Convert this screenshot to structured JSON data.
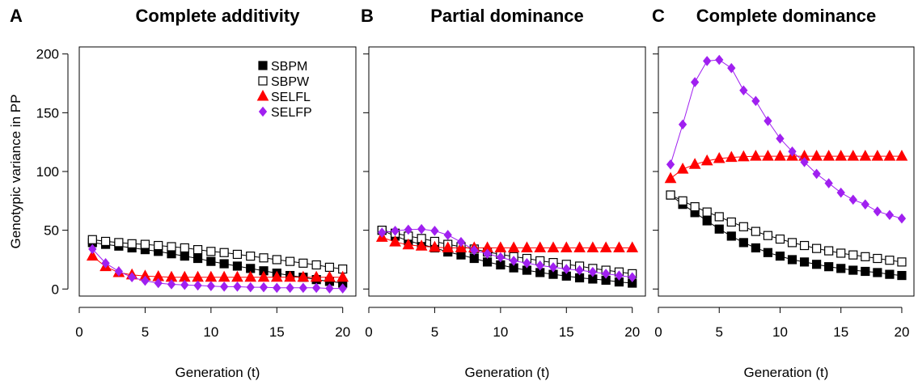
{
  "y_axis_title": "Genotypic variance in PP",
  "x_axis_title": "Generation (t)",
  "legend": [
    {
      "name": "SBPM",
      "marker": "filled-square",
      "color": "#000000"
    },
    {
      "name": "SBPW",
      "marker": "open-square",
      "color": "#000000"
    },
    {
      "name": "SELFL",
      "marker": "triangle",
      "color": "#ff0000"
    },
    {
      "name": "SELFP",
      "marker": "diamond",
      "color": "#a020f0"
    }
  ],
  "chart_data": [
    {
      "type": "line",
      "panel_letter": "A",
      "title": "Complete additivity",
      "xlabel": "Generation (t)",
      "ylabel": "Genotypic variance in PP",
      "xlim": [
        0,
        21
      ],
      "ylim": [
        -6,
        206
      ],
      "xticks": [
        0,
        5,
        10,
        15,
        20
      ],
      "yticks": [
        0,
        50,
        100,
        150,
        200
      ],
      "legend_position": "top-right",
      "x": [
        1,
        2,
        3,
        4,
        5,
        6,
        7,
        8,
        9,
        10,
        11,
        12,
        13,
        14,
        15,
        16,
        17,
        18,
        19,
        20
      ],
      "series": [
        {
          "name": "SBPM",
          "values": [
            39.5,
            38,
            36.5,
            35,
            33.5,
            32,
            30,
            28,
            26,
            23.5,
            21.5,
            19.5,
            17.5,
            15.5,
            13.5,
            11.5,
            10,
            8,
            6.5,
            5
          ]
        },
        {
          "name": "SBPW",
          "values": [
            42,
            40.5,
            39.5,
            38.5,
            38,
            37,
            36,
            35,
            33.5,
            32,
            31,
            29.5,
            28,
            26.5,
            25,
            23.5,
            22,
            20.5,
            18.5,
            17
          ]
        },
        {
          "name": "SELFL",
          "values": [
            28,
            19,
            14,
            12,
            11,
            10.5,
            10,
            10,
            10,
            10,
            10,
            10,
            10,
            10,
            10,
            10,
            10,
            10,
            10,
            10
          ]
        },
        {
          "name": "SELFP",
          "values": [
            34,
            22,
            15,
            10,
            7,
            5,
            4,
            3.5,
            3,
            2.5,
            2,
            2,
            1.5,
            1.5,
            1,
            1,
            1,
            1,
            0.5,
            0.5
          ]
        }
      ]
    },
    {
      "type": "line",
      "panel_letter": "B",
      "title": "Partial dominance",
      "xlabel": "Generation (t)",
      "ylabel": "",
      "xlim": [
        0,
        21
      ],
      "ylim": [
        -6,
        206
      ],
      "xticks": [
        0,
        5,
        10,
        15,
        20
      ],
      "yticks": [
        0,
        50,
        100,
        150,
        200
      ],
      "x": [
        1,
        2,
        3,
        4,
        5,
        6,
        7,
        8,
        9,
        10,
        11,
        12,
        13,
        14,
        15,
        16,
        17,
        18,
        19,
        20
      ],
      "series": [
        {
          "name": "SBPM",
          "values": [
            50,
            45,
            41,
            38,
            35,
            31.5,
            29,
            26,
            23,
            20.5,
            18,
            16,
            14,
            12.5,
            11,
            9.5,
            8.5,
            7.5,
            6,
            5
          ]
        },
        {
          "name": "SBPW",
          "values": [
            50,
            47.5,
            45,
            43,
            40.5,
            38,
            36,
            34,
            31.5,
            29.5,
            27.5,
            26,
            24,
            22.5,
            21,
            19.5,
            17.5,
            16,
            14.5,
            13
          ]
        },
        {
          "name": "SELFL",
          "values": [
            44,
            40,
            37.5,
            36.5,
            35.5,
            35,
            35,
            35,
            35,
            35,
            35,
            35,
            35,
            35,
            35,
            35,
            35,
            35,
            35,
            35
          ]
        },
        {
          "name": "SELFP",
          "values": [
            48,
            49.5,
            50.5,
            51,
            49.5,
            46,
            40,
            33,
            30,
            27,
            24,
            22,
            20,
            18.5,
            17,
            16,
            14.5,
            13,
            11.5,
            10
          ]
        }
      ]
    },
    {
      "type": "line",
      "panel_letter": "C",
      "title": "Complete dominance",
      "xlabel": "Generation (t)",
      "ylabel": "",
      "xlim": [
        0,
        21
      ],
      "ylim": [
        -6,
        206
      ],
      "xticks": [
        0,
        5,
        10,
        15,
        20
      ],
      "yticks": [
        0,
        50,
        100,
        150,
        200
      ],
      "x": [
        1,
        2,
        3,
        4,
        5,
        6,
        7,
        8,
        9,
        10,
        11,
        12,
        13,
        14,
        15,
        16,
        17,
        18,
        19,
        20
      ],
      "series": [
        {
          "name": "SBPM",
          "values": [
            80,
            72,
            65,
            58,
            51,
            45,
            39.5,
            35,
            31,
            28,
            25,
            23,
            21,
            19,
            17.5,
            16,
            15,
            14,
            12.5,
            11.5
          ]
        },
        {
          "name": "SBPW",
          "values": [
            80,
            75,
            70,
            65.5,
            61.5,
            57,
            53,
            49,
            45.5,
            42.5,
            39.5,
            37,
            34.5,
            32.5,
            30.5,
            29,
            27.5,
            26,
            24.5,
            23
          ]
        },
        {
          "name": "SELFL",
          "values": [
            94,
            102,
            106,
            109,
            111,
            112,
            112.5,
            113,
            113,
            113,
            113,
            113,
            113,
            113,
            113,
            113,
            113,
            113,
            113,
            113
          ]
        },
        {
          "name": "SELFP",
          "values": [
            106,
            140,
            176,
            194,
            195,
            188,
            169,
            160,
            143,
            128,
            117,
            108,
            98,
            90,
            82,
            76,
            72,
            66,
            63,
            60
          ]
        }
      ]
    }
  ]
}
